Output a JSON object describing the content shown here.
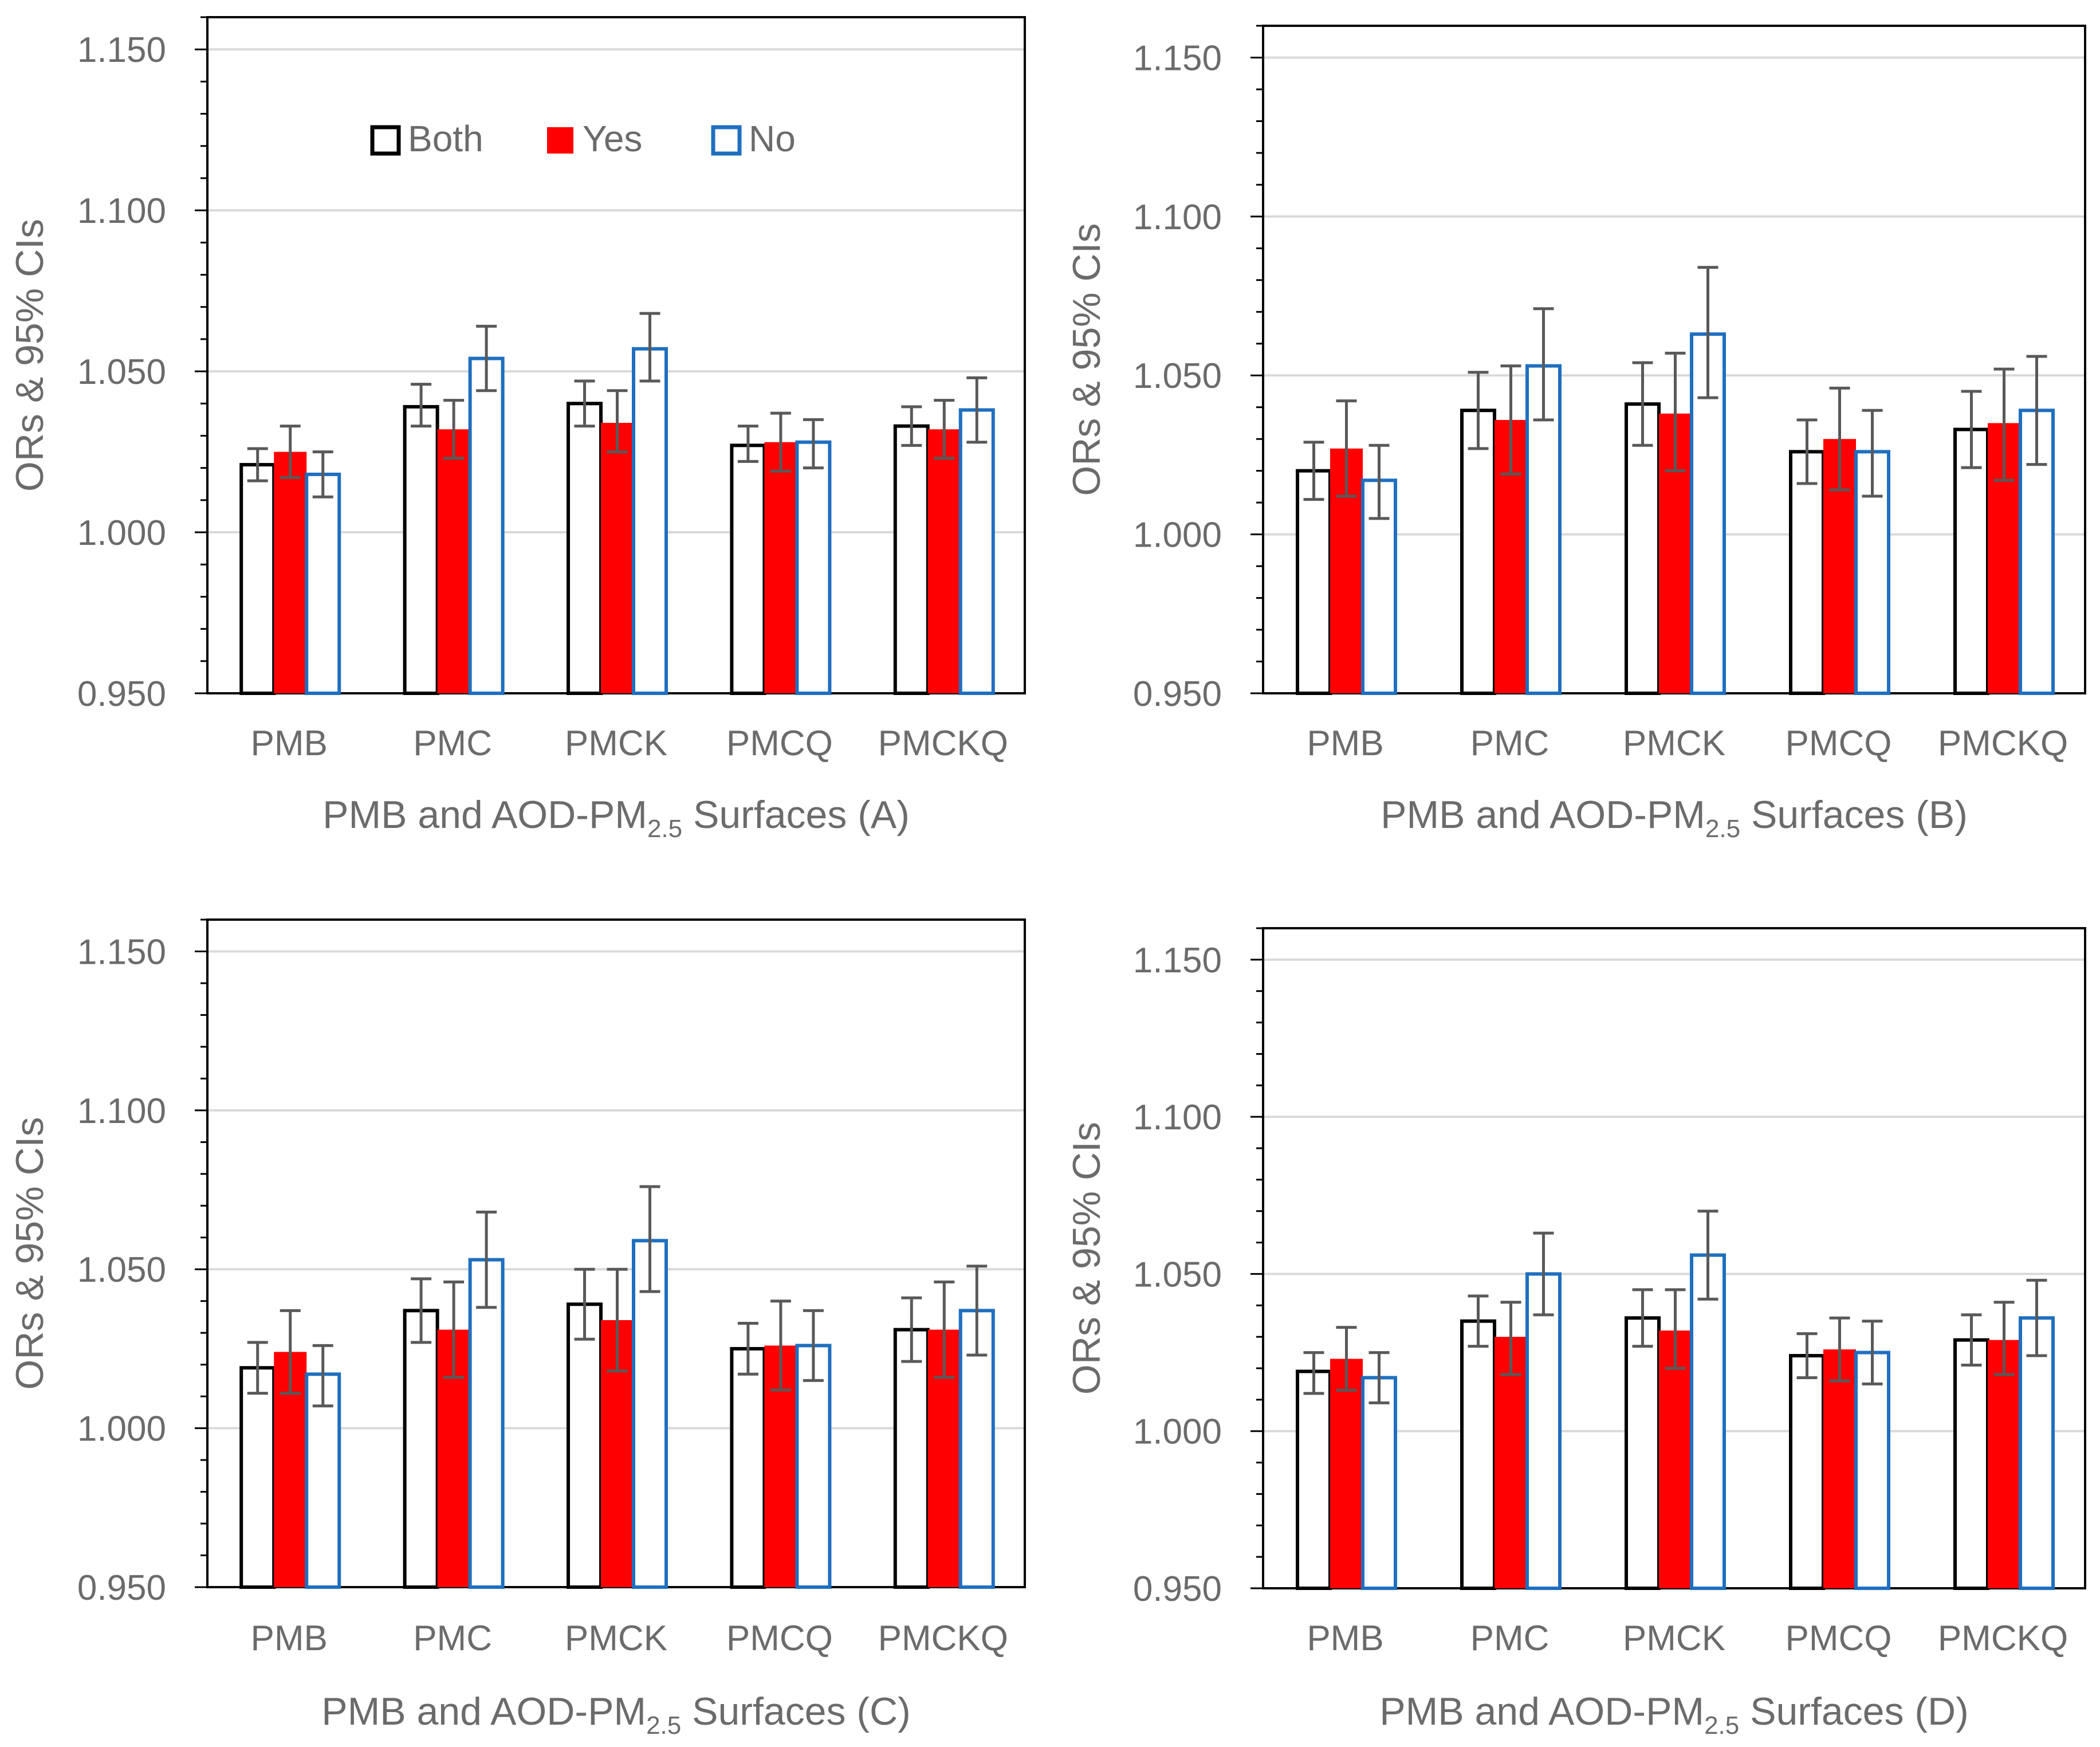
{
  "chart_data": [
    {
      "type": "bar",
      "panel": "A",
      "xlabel_prefix": "PMB and AOD-PM",
      "xlabel_sub": "2.5",
      "xlabel_suffix": " Surfaces (A)",
      "ylabel": "ORs & 95% CIs",
      "ylim": [
        0.95,
        1.16
      ],
      "yticks": [
        "0.950",
        "1.000",
        "1.050",
        "1.100",
        "1.150"
      ],
      "grid": true,
      "legend_position": "top",
      "categories": [
        "PMB",
        "PMC",
        "PMCK",
        "PMCQ",
        "PMCKQ"
      ],
      "series": [
        {
          "name": "Both",
          "values": [
            1.021,
            1.039,
            1.04,
            1.027,
            1.033
          ],
          "lower": [
            1.016,
            1.033,
            1.033,
            1.022,
            1.027
          ],
          "upper": [
            1.026,
            1.046,
            1.047,
            1.033,
            1.039
          ]
        },
        {
          "name": "Yes",
          "values": [
            1.025,
            1.032,
            1.034,
            1.028,
            1.032
          ],
          "lower": [
            1.017,
            1.023,
            1.025,
            1.019,
            1.023
          ],
          "upper": [
            1.033,
            1.041,
            1.044,
            1.037,
            1.041
          ]
        },
        {
          "name": "No",
          "values": [
            1.018,
            1.054,
            1.057,
            1.028,
            1.038
          ],
          "lower": [
            1.011,
            1.044,
            1.047,
            1.02,
            1.028
          ],
          "upper": [
            1.025,
            1.064,
            1.068,
            1.035,
            1.048
          ]
        }
      ]
    },
    {
      "type": "bar",
      "panel": "B",
      "xlabel_prefix": "PMB and AOD-PM",
      "xlabel_sub": "2.5",
      "xlabel_suffix": " Surfaces (B)",
      "ylabel": "ORs & 95% CIs",
      "ylim": [
        0.95,
        1.16
      ],
      "yticks": [
        "0.950",
        "1.000",
        "1.050",
        "1.100",
        "1.150"
      ],
      "grid": true,
      "legend_position": "none",
      "categories": [
        "PMB",
        "PMC",
        "PMCK",
        "PMCQ",
        "PMCKQ"
      ],
      "series": [
        {
          "name": "Both",
          "values": [
            1.02,
            1.039,
            1.041,
            1.026,
            1.033
          ],
          "lower": [
            1.011,
            1.027,
            1.028,
            1.016,
            1.021
          ],
          "upper": [
            1.029,
            1.051,
            1.054,
            1.036,
            1.045
          ]
        },
        {
          "name": "Yes",
          "values": [
            1.027,
            1.036,
            1.038,
            1.03,
            1.035
          ],
          "lower": [
            1.012,
            1.019,
            1.02,
            1.014,
            1.017
          ],
          "upper": [
            1.042,
            1.053,
            1.057,
            1.046,
            1.052
          ]
        },
        {
          "name": "No",
          "values": [
            1.017,
            1.053,
            1.063,
            1.026,
            1.039
          ],
          "lower": [
            1.005,
            1.036,
            1.043,
            1.012,
            1.022
          ],
          "upper": [
            1.028,
            1.071,
            1.084,
            1.039,
            1.056
          ]
        }
      ]
    },
    {
      "type": "bar",
      "panel": "C",
      "xlabel_prefix": "PMB and AOD-PM",
      "xlabel_sub": "2.5",
      "xlabel_suffix": " Surfaces (C)",
      "ylabel": "ORs & 95% CIs",
      "ylim": [
        0.95,
        1.16
      ],
      "yticks": [
        "0.950",
        "1.000",
        "1.050",
        "1.100",
        "1.150"
      ],
      "grid": true,
      "legend_position": "none",
      "categories": [
        "PMB",
        "PMC",
        "PMCK",
        "PMCQ",
        "PMCKQ"
      ],
      "series": [
        {
          "name": "Both",
          "values": [
            1.019,
            1.037,
            1.039,
            1.025,
            1.031
          ],
          "lower": [
            1.011,
            1.027,
            1.028,
            1.017,
            1.021
          ],
          "upper": [
            1.027,
            1.047,
            1.05,
            1.033,
            1.041
          ]
        },
        {
          "name": "Yes",
          "values": [
            1.024,
            1.031,
            1.034,
            1.026,
            1.031
          ],
          "lower": [
            1.011,
            1.016,
            1.018,
            1.012,
            1.016
          ],
          "upper": [
            1.037,
            1.046,
            1.05,
            1.04,
            1.046
          ]
        },
        {
          "name": "No",
          "values": [
            1.017,
            1.053,
            1.059,
            1.026,
            1.037
          ],
          "lower": [
            1.007,
            1.038,
            1.043,
            1.015,
            1.023
          ],
          "upper": [
            1.026,
            1.068,
            1.076,
            1.037,
            1.051
          ]
        }
      ]
    },
    {
      "type": "bar",
      "panel": "D",
      "xlabel_prefix": "PMB and AOD-PM",
      "xlabel_sub": "2.5",
      "xlabel_suffix": " Surfaces (D)",
      "ylabel": "ORs & 95% CIs",
      "ylim": [
        0.95,
        1.16
      ],
      "yticks": [
        "0.950",
        "1.000",
        "1.050",
        "1.100",
        "1.150"
      ],
      "grid": true,
      "legend_position": "none",
      "categories": [
        "PMB",
        "PMC",
        "PMCK",
        "PMCQ",
        "PMCKQ"
      ],
      "series": [
        {
          "name": "Both",
          "values": [
            1.019,
            1.035,
            1.036,
            1.024,
            1.029
          ],
          "lower": [
            1.012,
            1.027,
            1.027,
            1.017,
            1.021
          ],
          "upper": [
            1.025,
            1.043,
            1.045,
            1.031,
            1.037
          ]
        },
        {
          "name": "Yes",
          "values": [
            1.023,
            1.03,
            1.032,
            1.026,
            1.029
          ],
          "lower": [
            1.013,
            1.018,
            1.02,
            1.016,
            1.018
          ],
          "upper": [
            1.033,
            1.041,
            1.045,
            1.036,
            1.041
          ]
        },
        {
          "name": "No",
          "values": [
            1.017,
            1.05,
            1.056,
            1.025,
            1.036
          ],
          "lower": [
            1.009,
            1.037,
            1.042,
            1.015,
            1.024
          ],
          "upper": [
            1.025,
            1.063,
            1.07,
            1.035,
            1.048
          ]
        }
      ]
    }
  ],
  "legend": {
    "items": [
      "Both",
      "Yes",
      "No"
    ]
  },
  "colors": {
    "both_stroke": "#000000",
    "yes_fill": "#ff0000",
    "no_stroke": "#1f6fbf",
    "error_bar": "#595959",
    "grid": "#d9d9d9",
    "axis_text": "#6b6b6b"
  }
}
